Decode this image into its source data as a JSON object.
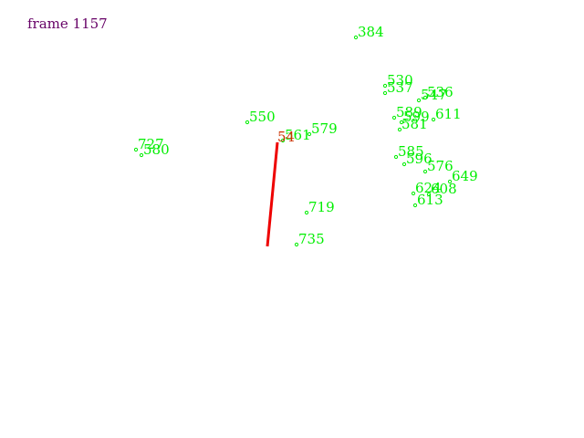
{
  "frame_label": "frame 1157",
  "colors": {
    "title": "#660066",
    "points": "#00ee00",
    "track": "#ee0000",
    "track_label": "#cc3300"
  },
  "points": [
    {
      "id": "384"
    },
    {
      "id": "530"
    },
    {
      "id": "537"
    },
    {
      "id": "536"
    },
    {
      "id": "547"
    },
    {
      "id": "550"
    },
    {
      "id": "589"
    },
    {
      "id": "599"
    },
    {
      "id": "611"
    },
    {
      "id": "581"
    },
    {
      "id": "579"
    },
    {
      "id": "561"
    },
    {
      "id": "727"
    },
    {
      "id": "580"
    },
    {
      "id": "585"
    },
    {
      "id": "596"
    },
    {
      "id": "576"
    },
    {
      "id": "649"
    },
    {
      "id": "624"
    },
    {
      "id": "608"
    },
    {
      "id": "613"
    },
    {
      "id": "719"
    },
    {
      "id": "735"
    }
  ],
  "track": {
    "id": "54"
  }
}
